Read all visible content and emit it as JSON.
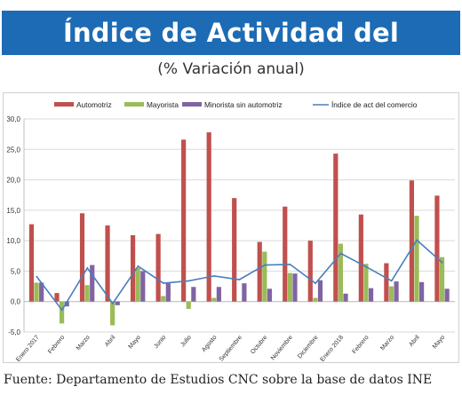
{
  "header": {
    "title": "Índice de Actividad del Comercio",
    "subtitle": "(% Variación anual)"
  },
  "footer": {
    "source": "Fuente: Departamento de Estudios CNC sobre la base de datos INE"
  },
  "colors": {
    "banner": "#1c6bb4",
    "automotriz": "#c0504d",
    "mayorista": "#9bbb59",
    "minorista": "#8064a2",
    "indice": "#4a7ebb",
    "grid": "#d9d9d9"
  },
  "chart_data": {
    "type": "bar",
    "categories": [
      "Enero 2017",
      "Febrero",
      "Marzo",
      "Abril",
      "Mayo",
      "Junio",
      "Julio",
      "Agosto",
      "Septiembre",
      "Octubre",
      "Noviembre",
      "Diciembre",
      "Enero 2018",
      "Febrero",
      "Marzo",
      "Abril",
      "Mayo"
    ],
    "series": [
      {
        "name": "Automotriz",
        "kind": "bar",
        "color": "#c0504d",
        "values": [
          12.7,
          1.4,
          14.5,
          12.5,
          10.9,
          11.1,
          26.6,
          27.8,
          17.0,
          9.8,
          15.6,
          10.0,
          24.3,
          14.3,
          6.3,
          19.9,
          17.4
        ]
      },
      {
        "name": "Mayorista",
        "kind": "bar",
        "color": "#9bbb59",
        "values": [
          3.1,
          -3.6,
          2.7,
          -3.9,
          5.5,
          0.9,
          -1.2,
          0.6,
          0.0,
          8.2,
          4.7,
          0.6,
          9.5,
          6.2,
          2.5,
          14.1,
          7.3
        ]
      },
      {
        "name": "Minorista sin automotriz",
        "kind": "bar",
        "color": "#8064a2",
        "values": [
          3.1,
          -0.8,
          6.0,
          -0.6,
          5.0,
          3.0,
          2.4,
          2.4,
          3.0,
          2.1,
          4.6,
          3.5,
          1.3,
          2.2,
          3.3,
          3.2,
          2.1
        ]
      },
      {
        "name": "Índice de act del comercio",
        "kind": "line",
        "color": "#4a7ebb",
        "values": [
          4.1,
          -1.4,
          5.5,
          -0.3,
          5.8,
          3.0,
          3.4,
          4.2,
          3.6,
          6.0,
          6.1,
          3.0,
          7.9,
          5.7,
          3.4,
          10.1,
          6.4
        ]
      }
    ],
    "y_ticks": [
      "-5,0",
      "0,0",
      "5,0",
      "10,0",
      "15,0",
      "20,0",
      "25,0",
      "30,0"
    ],
    "ylim": [
      -5,
      30
    ],
    "legend_position": "top",
    "grid": true
  }
}
